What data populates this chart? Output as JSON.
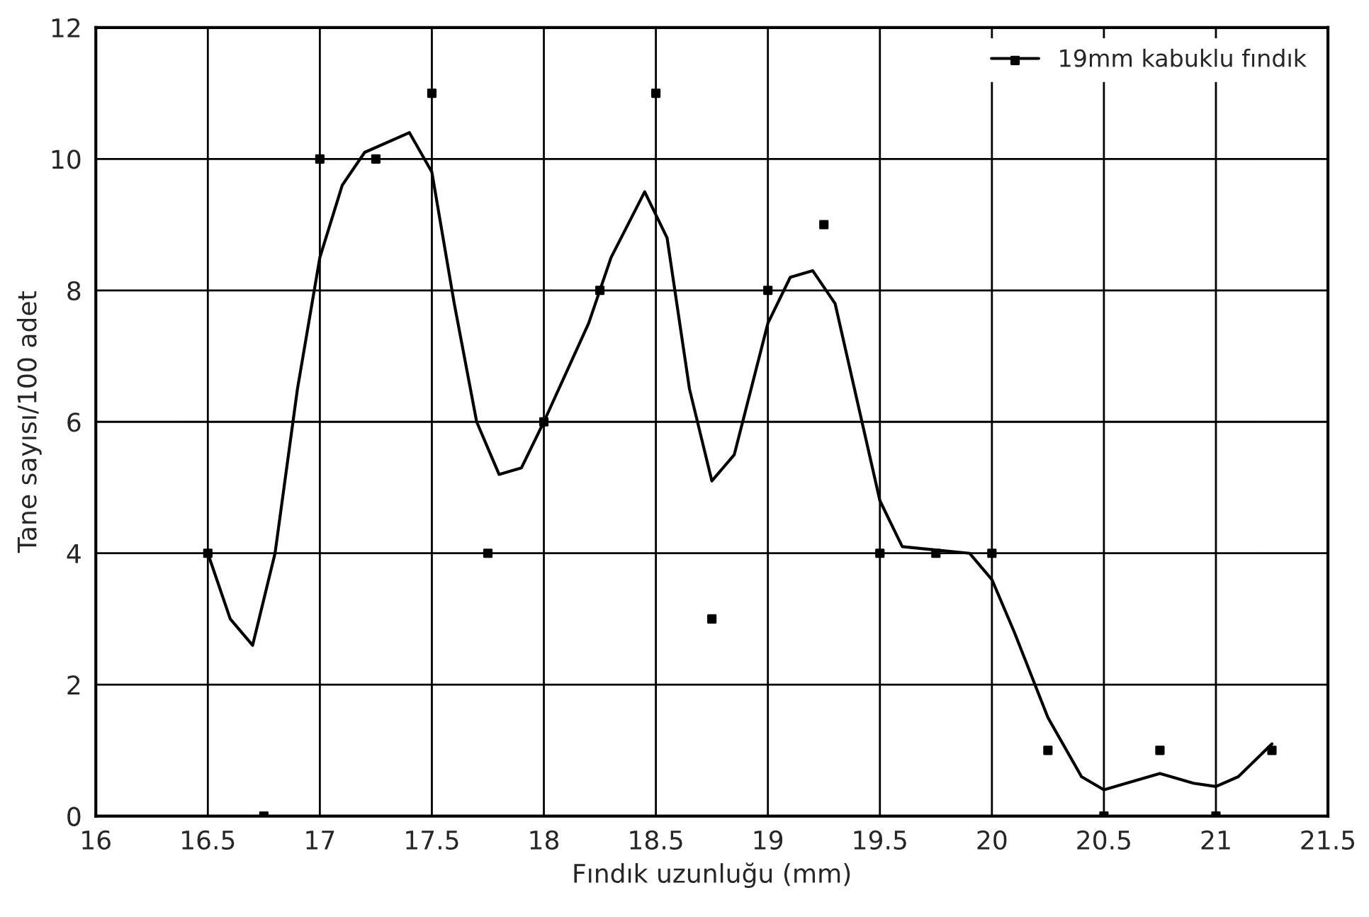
{
  "chart_data": {
    "type": "scatter",
    "xlabel": "Fındık uzunluğu (mm)",
    "ylabel": "Tane sayısı/100 adet",
    "xlim": [
      16,
      21.5
    ],
    "xticks": [
      16,
      16.5,
      17,
      17.5,
      18,
      18.5,
      19,
      19.5,
      20,
      20.5,
      21,
      21.5
    ],
    "ylim": [
      0,
      12
    ],
    "yticks": [
      0,
      2,
      4,
      6,
      8,
      10,
      12
    ],
    "grid": true,
    "legend": "top right",
    "series": [
      {
        "color": "#000000",
        "marker": "square",
        "x": [
          16.5,
          16.75,
          17,
          17.25,
          17.5,
          17.75,
          18,
          18.25,
          18.5,
          18.75,
          19,
          19.25,
          19.5,
          19.75,
          20,
          20.25,
          20.5,
          20.75,
          21,
          21.25
        ],
        "values": [
          4,
          0,
          10,
          10,
          11,
          4,
          6,
          8,
          11,
          3,
          8,
          9,
          4,
          4,
          4,
          1,
          0,
          1,
          0,
          1
        ]
      },
      {
        "type": "line",
        "name": "19mm kabuklu fındık",
        "color": "#000000",
        "line_style": "solid",
        "x": [
          16.5,
          16.6,
          16.7,
          16.8,
          16.9,
          17,
          17.1,
          17.2,
          17.4,
          17.5,
          17.6,
          17.7,
          17.8,
          17.9,
          18,
          18.2,
          18.3,
          18.45,
          18.55,
          18.65,
          18.75,
          18.85,
          19,
          19.1,
          19.2,
          19.3,
          19.4,
          19.5,
          19.6,
          19.75,
          19.9,
          20,
          20.1,
          20.25,
          20.4,
          20.5,
          20.6,
          20.75,
          20.9,
          21,
          21.1,
          21.25
        ],
        "values": [
          4,
          3,
          2.6,
          4,
          6.5,
          8.5,
          9.6,
          10.1,
          10.4,
          9.8,
          7.8,
          6,
          5.2,
          5.3,
          6,
          7.5,
          8.5,
          9.5,
          8.8,
          6.5,
          5.1,
          5.5,
          7.5,
          8.2,
          8.3,
          7.8,
          6.3,
          4.8,
          4.1,
          4.05,
          4,
          3.6,
          2.8,
          1.5,
          0.6,
          0.4,
          0.5,
          0.65,
          0.5,
          0.45,
          0.6,
          1.1
        ]
      }
    ]
  }
}
